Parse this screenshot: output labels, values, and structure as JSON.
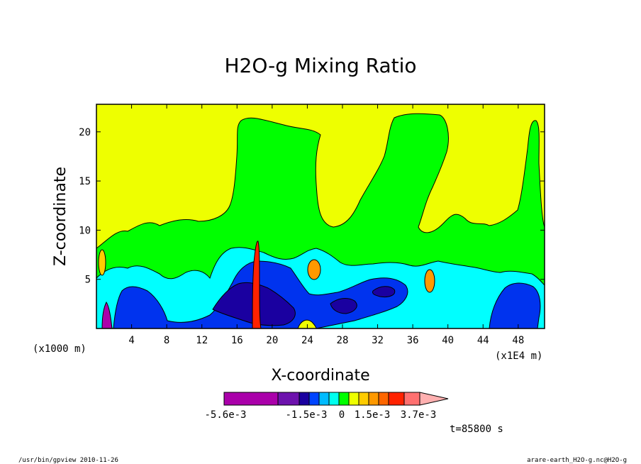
{
  "chart_data": {
    "type": "heatmap",
    "title": "H2O-g Mixing Ratio",
    "xlabel": "X-coordinate",
    "ylabel": "Z-coordinate",
    "x_unit": "(x1E4 m)",
    "y_unit": "(x1000 m)",
    "xlim": [
      0,
      51
    ],
    "ylim": [
      0,
      22.8
    ],
    "x_ticks": [
      4,
      8,
      12,
      16,
      20,
      24,
      28,
      32,
      36,
      40,
      44,
      48
    ],
    "y_ticks": [
      5,
      10,
      15,
      20
    ],
    "colorbar": {
      "colors": [
        "#aa00aa",
        "#6d12ad",
        "#1a00a0",
        "#0044ff",
        "#00bbff",
        "#00ffee",
        "#00ff00",
        "#eeff00",
        "#ffcc00",
        "#ff9900",
        "#ff6600",
        "#ff2200",
        "#ff7070",
        "#ffb0b0"
      ],
      "labels": [
        "-5.6e-3",
        "-1.5e-3",
        "0",
        "1.5e-3",
        "3.7e-3"
      ]
    },
    "time_label": "t=85800 s",
    "background_level": "#eeff00"
  },
  "footer": {
    "left": "/usr/bin/gpview   2010-11-26",
    "right": "arare-earth_H2O-g.nc@H2O-g"
  }
}
